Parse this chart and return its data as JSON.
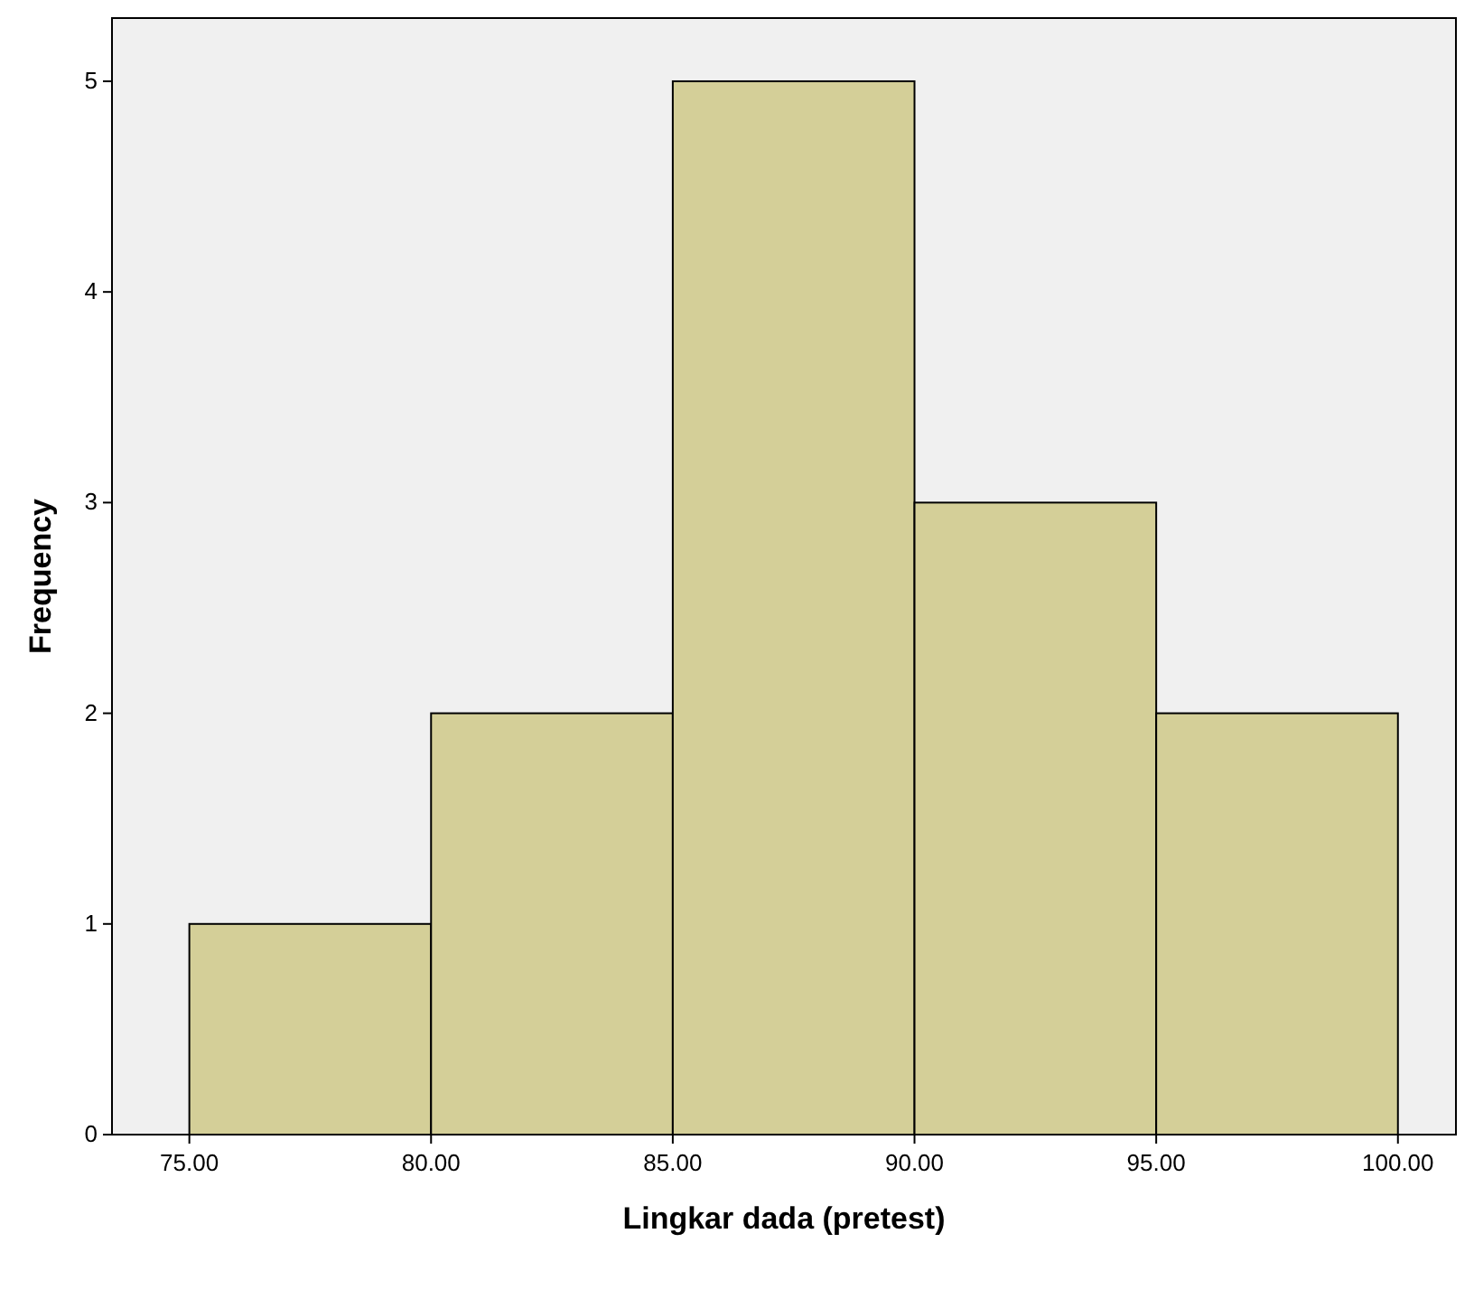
{
  "chart_data": {
    "type": "histogram",
    "xlabel": "Lingkar dada (pretest)",
    "ylabel": "Frequency",
    "bins": [
      75,
      80,
      85,
      90,
      95,
      100
    ],
    "values": [
      1,
      2,
      5,
      3,
      2
    ],
    "color": "#d4cf98",
    "xlim": [
      73.4,
      101.2
    ],
    "ylim": [
      0,
      5.3
    ],
    "xticks": [
      {
        "value": 75,
        "label": "75.00"
      },
      {
        "value": 80,
        "label": "80.00"
      },
      {
        "value": 85,
        "label": "85.00"
      },
      {
        "value": 90,
        "label": "90.00"
      },
      {
        "value": 95,
        "label": "95.00"
      },
      {
        "value": 100,
        "label": "100.00"
      }
    ],
    "yticks": [
      0,
      1,
      2,
      3,
      4,
      5
    ],
    "grid": false
  }
}
